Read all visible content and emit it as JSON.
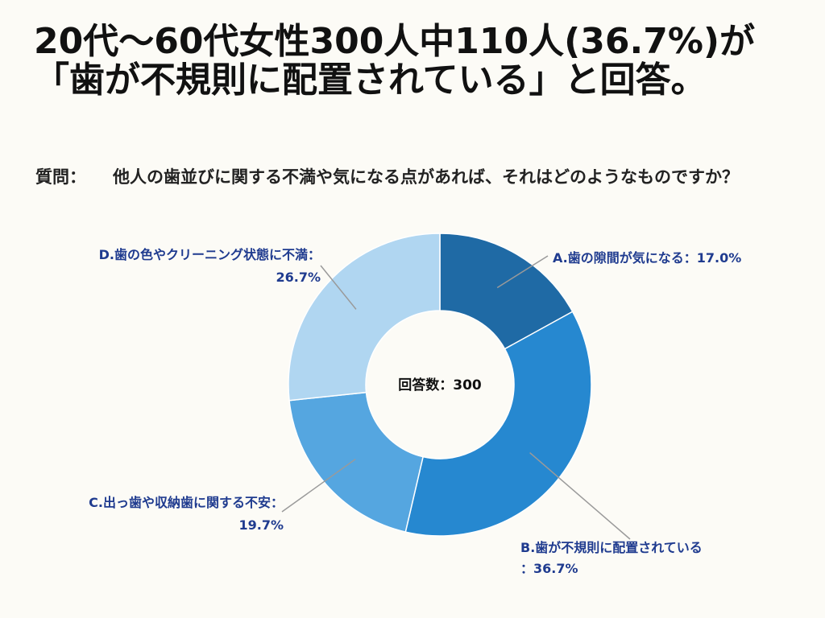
{
  "title": "20代〜60代女性300人中110人(36.7%)が「歯が不規則に配置されている」と回答。",
  "question": {
    "label": "質問：",
    "text": "他人の歯並びに関する不満や気になる点があれば、それはどのようなものですか？"
  },
  "chart_data": {
    "type": "pie",
    "donut": true,
    "center_label": "回答数：300",
    "categories": [
      "A.歯の隙間が気になる",
      "B.歯が不規則に配置されている",
      "C.出っ歯や収納歯に関する不安",
      "D.歯の色やクリーニング状態に不満"
    ],
    "values": [
      17.0,
      36.7,
      19.7,
      26.7
    ],
    "colors": [
      "#1f6aa5",
      "#2688d0",
      "#55a6e0",
      "#b0d6f1"
    ],
    "labels": [
      [
        "A.歯の隙間が気になる：17.0%"
      ],
      [
        "B.歯が不規則に配置されている",
        "：36.7%"
      ],
      [
        "C.出っ歯や収納歯に関する不安：",
        "19.7%"
      ],
      [
        "D.歯の色やクリーニング状態に不満：",
        "26.7%"
      ]
    ]
  }
}
